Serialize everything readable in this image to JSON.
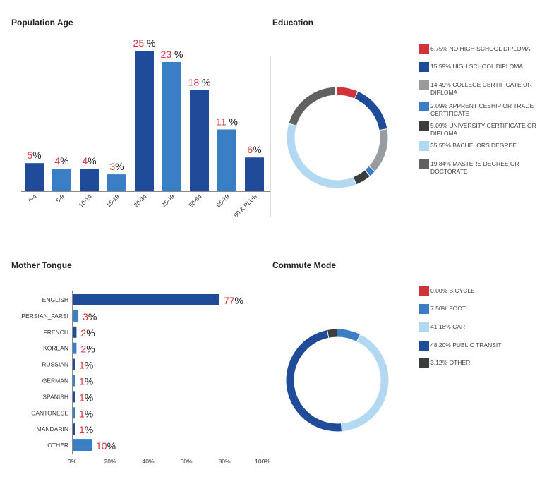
{
  "chart_data": [
    {
      "type": "bar",
      "title": "Population Age",
      "categories": [
        "0-4",
        "5-9",
        "10-14",
        "15-19",
        "20-34",
        "35-49",
        "50-64",
        "65-79",
        "80 & PLUS"
      ],
      "values": [
        5,
        4,
        4,
        3,
        25,
        23,
        18,
        11,
        6
      ],
      "data_labels": [
        "5",
        "4",
        "4",
        "3",
        "25",
        "23",
        "18",
        "11",
        "6"
      ],
      "label_suffix": "%",
      "colors": [
        "#1f4b99",
        "#3a7ec6",
        "#1f4b99",
        "#3a7ec6",
        "#1f4b99",
        "#3a7ec6",
        "#1f4b99",
        "#3a7ec6",
        "#1f4b99"
      ],
      "label_number_color": "#d9363e"
    },
    {
      "type": "pie",
      "title": "Education",
      "donut": true,
      "slices": [
        {
          "label": "6.75% NO HIGH SCHOOL DIPLOMA",
          "value": 6.75,
          "color": "#d0343a"
        },
        {
          "label": "15.59% HIGH SCHOOL DIPLOMA",
          "value": 15.59,
          "color": "#1f4b99"
        },
        {
          "label": "14.49% COLLEGE CERTIFICATE OR DIPLOMA",
          "value": 14.49,
          "color": "#999c9f"
        },
        {
          "label": "2.09% APPRENTICESHIP OR TRADE CERTIFICATE",
          "value": 2.09,
          "color": "#3a7ec6"
        },
        {
          "label": "5.09% UNIVERSITY CERTIFICATE OR DIPLOMA",
          "value": 5.09,
          "color": "#3b3c3e"
        },
        {
          "label": "35.55% BACHELORS DEGREE",
          "value": 35.55,
          "color": "#b3d8f2"
        },
        {
          "label": "19.84% MASTERS DEGREE OR DOCTORATE",
          "value": 19.84,
          "color": "#5f6163"
        }
      ],
      "legend": "right"
    },
    {
      "type": "bar",
      "orientation": "horizontal",
      "title": "Mother Tongue",
      "categories": [
        "ENGLISH",
        "PERSIAN_FARSI",
        "FRENCH",
        "KOREAN",
        "RUSSIAN",
        "GERMAN",
        "SPANISH",
        "CANTONESE",
        "MANDARIN",
        "OTHER"
      ],
      "values": [
        77,
        3,
        2,
        2,
        1,
        1,
        1,
        1,
        1,
        10
      ],
      "data_labels": [
        "77",
        "3",
        "2",
        "2",
        "1",
        "1",
        "1",
        "1",
        "1",
        "10"
      ],
      "label_suffix": "%",
      "colors": [
        "#1f4b99",
        "#3a7ec6",
        "#1f4b99",
        "#3a7ec6",
        "#1f4b99",
        "#3a7ec6",
        "#1f4b99",
        "#3a7ec6",
        "#1f4b99",
        "#3a7ec6"
      ],
      "xlim": [
        0,
        100
      ],
      "xticks": [
        "0%",
        "20%",
        "40%",
        "60%",
        "80%",
        "100%"
      ]
    },
    {
      "type": "pie",
      "title": "Commute Mode",
      "donut": true,
      "slices": [
        {
          "label": "0.00% BICYCLE",
          "value": 0,
          "color": "#d0343a"
        },
        {
          "label": "7.50% FOOT",
          "value": 7.5,
          "color": "#3a7ec6"
        },
        {
          "label": "41.18% CAR",
          "value": 41.18,
          "color": "#b3d8f2"
        },
        {
          "label": "48.20% PUBLIC TRANSIT",
          "value": 48.2,
          "color": "#1f4b99"
        },
        {
          "label": "3.12% OTHER",
          "value": 3.12,
          "color": "#3b3c3e"
        }
      ],
      "legend": "right"
    }
  ]
}
